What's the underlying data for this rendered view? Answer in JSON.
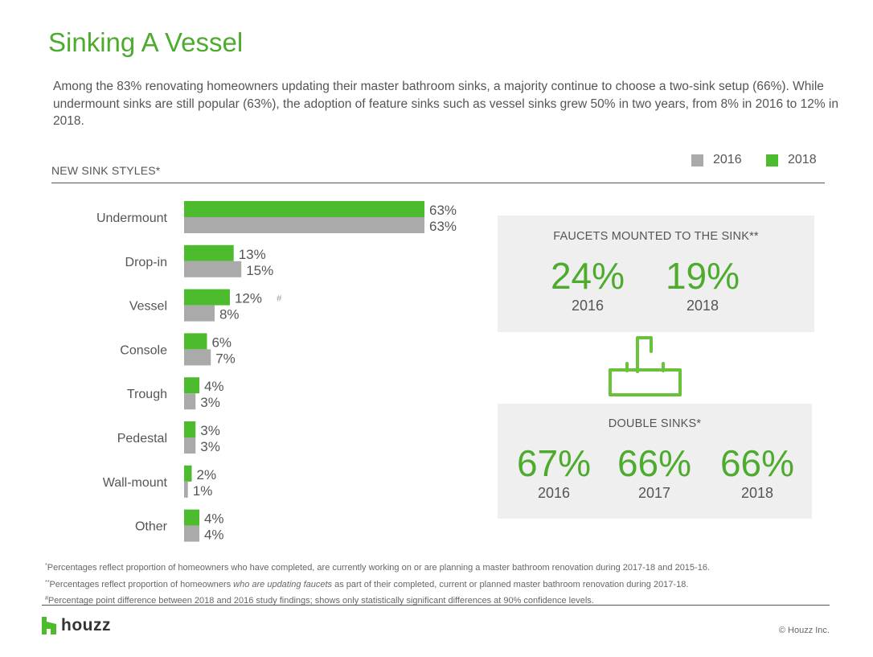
{
  "title": "Sinking A Vessel",
  "intro": "Among the 83% renovating homeowners updating their master bathroom sinks, a majority continue to choose a two-sink setup (66%). While undermount sinks are still popular (63%), the adoption of feature sinks such as vessel sinks grew 50% in two years, from 8% in 2016 to 12% in 2018.",
  "legend": {
    "series_a": "2016",
    "series_b": "2018",
    "color_a": "#aaaaaa",
    "color_b": "#4dbb2e"
  },
  "section_label": "NEW SINK STYLES*",
  "chart_data": {
    "type": "bar",
    "orientation": "horizontal",
    "categories": [
      "Undermount",
      "Drop-in",
      "Vessel",
      "Console",
      "Trough",
      "Pedestal",
      "Wall-mount",
      "Other"
    ],
    "series": [
      {
        "name": "2018",
        "values": [
          63,
          13,
          12,
          6,
          4,
          3,
          2,
          4
        ],
        "labels": [
          "63%",
          "13%",
          "12%",
          "6%",
          "4%",
          "3%",
          "2%",
          "4%"
        ],
        "color": "#4dbb2e"
      },
      {
        "name": "2016",
        "values": [
          63,
          15,
          8,
          7,
          3,
          3,
          1,
          4
        ],
        "labels": [
          "63%",
          "15%",
          "8%",
          "7%",
          "3%",
          "3%",
          "1%",
          "4%"
        ],
        "color": "#aaaaaa"
      }
    ],
    "annotations": [
      {
        "category": "Vessel",
        "text": "#"
      }
    ]
  },
  "faucets": {
    "title": "FAUCETS MOUNTED TO THE SINK**",
    "stats": [
      {
        "value": "24%",
        "year": "2016"
      },
      {
        "value": "19%",
        "year": "2018"
      }
    ]
  },
  "sink_icon": "sink-icon",
  "double_sinks": {
    "title": "DOUBLE SINKS*",
    "stats": [
      {
        "value": "67%",
        "year": "2016"
      },
      {
        "value": "66%",
        "year": "2017"
      },
      {
        "value": "66%",
        "year": "2018"
      }
    ]
  },
  "footnotes": {
    "f1_mark": "*",
    "f1": "Percentages reflect proportion of homeowners who have completed, are currently working on or are planning a master bathroom renovation during 2017-18 and 2015-16.",
    "f2_mark": "**",
    "f2_pre": "Percentages reflect proportion of homeowners ",
    "f2_em": "who are updating faucets",
    "f2_post": " as part of their completed, current or planned master bathroom renovation during 2017-18.",
    "f3_mark": "#",
    "f3": "Percentage point difference between 2018 and 2016 study findings; shows only statistically significant differences at 90% confidence levels."
  },
  "logo": {
    "icon": "houzz-logo-icon",
    "text": "houzz"
  },
  "copyright": "© Houzz Inc."
}
